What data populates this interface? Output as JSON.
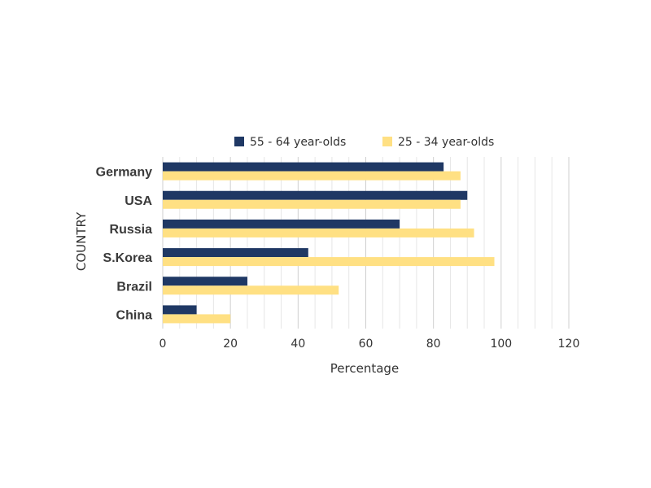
{
  "chart_data": {
    "type": "bar",
    "orientation": "horizontal",
    "categories": [
      "Germany",
      "USA",
      "Russia",
      "S.Korea",
      "Brazil",
      "China"
    ],
    "series": [
      {
        "name": "55 - 64 year-olds",
        "color": "#1f3864",
        "values": [
          83,
          90,
          70,
          43,
          25,
          10
        ]
      },
      {
        "name": "25 - 34 year-olds",
        "color": "#ffe083",
        "values": [
          88,
          88,
          92,
          98,
          52,
          20
        ]
      }
    ],
    "xlabel": "Percentage",
    "ylabel": "COUNTRY",
    "xlim": [
      0,
      120
    ],
    "xticks": [
      0,
      20,
      40,
      60,
      80,
      100,
      120
    ],
    "grid": true,
    "legend_position": "top"
  }
}
